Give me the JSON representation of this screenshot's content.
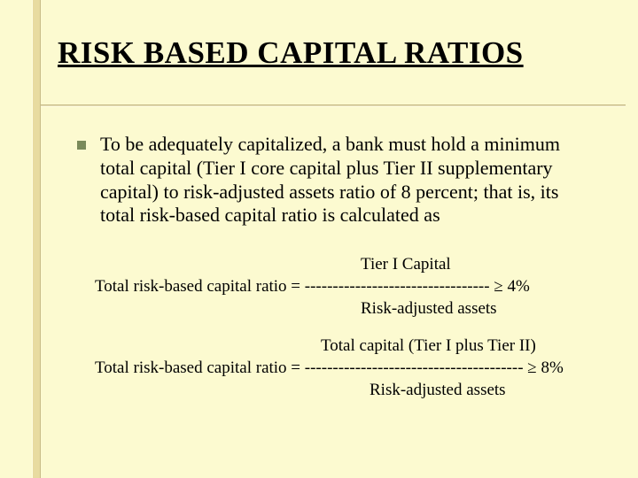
{
  "colors": {
    "background": "#fcfad0",
    "rail": "#e8dba0",
    "rail_shadow": "#c8bc88",
    "rail_highlight": "#fffde0",
    "bullet": "#7a8a5a",
    "text": "#000000"
  },
  "typography": {
    "family": "Times New Roman",
    "title_size_pt": 26,
    "body_size_pt": 17,
    "formula_size_pt": 15
  },
  "title": "RISK BASED CAPITAL RATIOS",
  "body_paragraph": "To be adequately capitalized, a bank must hold a minimum total capital (Tier  I core capital plus Tier II supplementary capital) to risk-adjusted assets ratio of 8 percent; that is, its total risk-based capital ratio is calculated as",
  "formula1": {
    "numerator": "Tier I Capital",
    "lhs": "Total risk-based capital ratio = ",
    "dashes": "---------------------------------",
    "rhs": " ≥ 4%",
    "denominator": "Risk-adjusted assets"
  },
  "formula2": {
    "numerator": "Total capital (Tier I plus Tier II)",
    "lhs": "Total risk-based capital ratio = ",
    "dashes": "---------------------------------------",
    "rhs": " ≥ 8%",
    "denominator": "Risk-adjusted assets"
  }
}
